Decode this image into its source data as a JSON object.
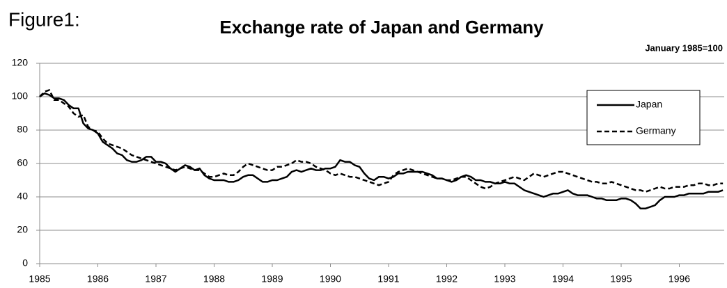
{
  "chart_data": {
    "type": "line",
    "figure_label": "Figure1:",
    "title": "Exchange rate of Japan and Germany",
    "annotation": "January 1985=100",
    "categories": [
      "1985",
      null,
      null,
      null,
      null,
      null,
      null,
      null,
      null,
      null,
      null,
      null,
      "1986",
      null,
      null,
      null,
      null,
      null,
      null,
      null,
      null,
      null,
      null,
      null,
      "1987",
      null,
      null,
      null,
      null,
      null,
      null,
      null,
      null,
      null,
      null,
      null,
      "1988",
      null,
      null,
      null,
      null,
      null,
      null,
      null,
      null,
      null,
      null,
      null,
      "1989",
      null,
      null,
      null,
      null,
      null,
      null,
      null,
      null,
      null,
      null,
      null,
      "1990",
      null,
      null,
      null,
      null,
      null,
      null,
      null,
      null,
      null,
      null,
      null,
      "1991",
      null,
      null,
      null,
      null,
      null,
      null,
      null,
      null,
      null,
      null,
      null,
      "1992",
      null,
      null,
      null,
      null,
      null,
      null,
      null,
      null,
      null,
      null,
      null,
      "1993",
      null,
      null,
      null,
      null,
      null,
      null,
      null,
      null,
      null,
      null,
      null,
      "1994",
      null,
      null,
      null,
      null,
      null,
      null,
      null,
      null,
      null,
      null,
      null,
      "1995",
      null,
      null,
      null,
      null,
      null,
      null,
      null,
      null,
      null,
      null,
      null,
      "1996",
      null,
      null,
      null,
      null,
      null,
      null,
      null,
      null,
      null
    ],
    "series": [
      {
        "name": "Japan",
        "color": "#000000",
        "line_style": "solid",
        "values": [
          100,
          102,
          101,
          99,
          99,
          98,
          95,
          93,
          93,
          84,
          81,
          80,
          78,
          73,
          71,
          69,
          66,
          65,
          62,
          61,
          61,
          62,
          64,
          64,
          61,
          61,
          60,
          57,
          55,
          57,
          59,
          58,
          56,
          57,
          53,
          51,
          50,
          50,
          50,
          49,
          49,
          50,
          52,
          53,
          53,
          51,
          49,
          49,
          50,
          50,
          51,
          52,
          55,
          56,
          55,
          56,
          57,
          56,
          56,
          57,
          57,
          58,
          62,
          61,
          61,
          59,
          58,
          54,
          51,
          50,
          52,
          52,
          51,
          52,
          54,
          54,
          55,
          55,
          55,
          55,
          54,
          53,
          51,
          51,
          50,
          49,
          50,
          52,
          53,
          52,
          50,
          50,
          49,
          49,
          48,
          48,
          49,
          48,
          48,
          46,
          44,
          43,
          42,
          41,
          40,
          41,
          42,
          42,
          43,
          44,
          42,
          41,
          41,
          41,
          40,
          39,
          39,
          38,
          38,
          38,
          39,
          39,
          38,
          36,
          33,
          33,
          34,
          35,
          38,
          40,
          40,
          40,
          41,
          41,
          42,
          42,
          42,
          42,
          43,
          43,
          43,
          44
        ]
      },
      {
        "name": "Germany",
        "color": "#000000",
        "line_style": "dashed",
        "values": [
          100,
          103,
          104,
          98,
          98,
          96,
          94,
          90,
          88,
          89,
          82,
          80,
          79,
          75,
          72,
          71,
          70,
          69,
          67,
          65,
          64,
          63,
          62,
          61,
          60,
          59,
          58,
          57,
          56,
          57,
          58,
          57,
          56,
          56,
          54,
          52,
          52,
          53,
          54,
          53,
          53,
          55,
          58,
          60,
          59,
          58,
          57,
          56,
          56,
          58,
          58,
          59,
          60,
          62,
          61,
          61,
          60,
          58,
          57,
          56,
          54,
          53,
          54,
          53,
          52,
          52,
          51,
          50,
          49,
          48,
          47,
          48,
          49,
          53,
          55,
          56,
          57,
          56,
          55,
          54,
          53,
          52,
          51,
          51,
          50,
          50,
          51,
          52,
          52,
          50,
          48,
          46,
          45,
          46,
          48,
          49,
          50,
          51,
          52,
          51,
          50,
          52,
          54,
          53,
          52,
          53,
          54,
          55,
          55,
          54,
          53,
          52,
          51,
          50,
          49,
          49,
          48,
          48,
          49,
          48,
          47,
          46,
          45,
          44,
          44,
          43,
          44,
          45,
          46,
          45,
          45,
          46,
          46,
          46,
          47,
          47,
          48,
          48,
          47,
          47,
          48,
          48
        ]
      }
    ],
    "ylim": [
      0,
      120
    ],
    "yticks": [
      0,
      20,
      40,
      60,
      80,
      100,
      120
    ],
    "grid": true,
    "legend": "upper right"
  }
}
